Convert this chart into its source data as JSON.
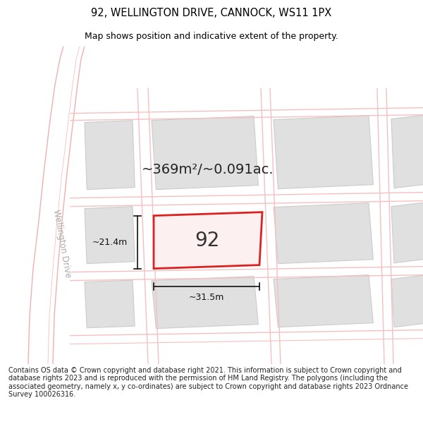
{
  "title": "92, WELLINGTON DRIVE, CANNOCK, WS11 1PX",
  "subtitle": "Map shows position and indicative extent of the property.",
  "area_text": "~369m²/~0.091ac.",
  "number_label": "92",
  "dim_width": "~31.5m",
  "dim_height": "~21.4m",
  "footer": "Contains OS data © Crown copyright and database right 2021. This information is subject to Crown copyright and database rights 2023 and is reproduced with the permission of HM Land Registry. The polygons (including the associated geometry, namely x, y co-ordinates) are subject to Crown copyright and database rights 2023 Ordnance Survey 100026316.",
  "bg_color": "#ffffff",
  "map_bg": "#ffffff",
  "road_color": "#f5c0c0",
  "road_color2": "#f0b0b0",
  "block_fill": "#e0e0e0",
  "block_stroke": "#cccccc",
  "highlight_fill": "#fdf0f0",
  "highlight_stroke": "#dd2020",
  "title_fontsize": 10.5,
  "subtitle_fontsize": 9,
  "footer_fontsize": 7.0,
  "area_fontsize": 14,
  "number_fontsize": 20,
  "dim_fontsize": 9,
  "street_label": "Wellington Drive",
  "street_fontsize": 8.5,
  "street_color": "#aaaaaa"
}
